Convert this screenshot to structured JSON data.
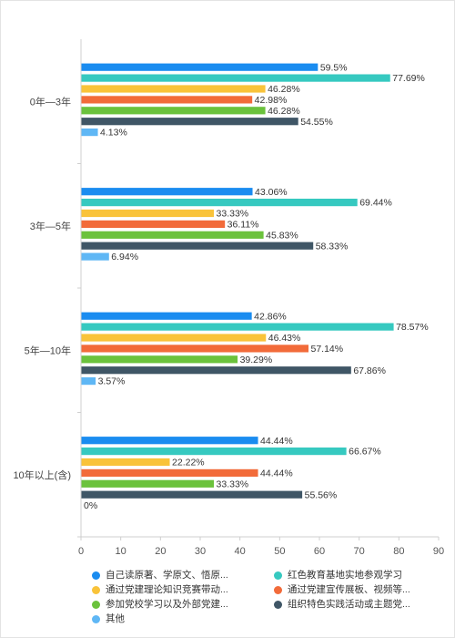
{
  "chart_data": {
    "type": "bar",
    "orientation": "horizontal",
    "categories": [
      "0年—3年",
      "3年—5年",
      "5年—10年",
      "10年以上(含)"
    ],
    "series": [
      {
        "name": "自己读原著、学原文、悟原...",
        "color": "#1a8cf0",
        "values": [
          59.5,
          43.06,
          42.86,
          44.44
        ],
        "labels": [
          "59.5%",
          "43.06%",
          "42.86%",
          "44.44%"
        ]
      },
      {
        "name": "红色教育基地实地参观学习",
        "color": "#36c9c0",
        "values": [
          77.69,
          69.44,
          78.57,
          66.67
        ],
        "labels": [
          "77.69%",
          "69.44%",
          "78.57%",
          "66.67%"
        ]
      },
      {
        "name": "通过党建理论知识竞赛带动...",
        "color": "#f9c33a",
        "values": [
          46.28,
          33.33,
          46.43,
          22.22
        ],
        "labels": [
          "46.28%",
          "33.33%",
          "46.43%",
          "22.22%"
        ]
      },
      {
        "name": "通过党建宣传展板、视频等...",
        "color": "#f26b3a",
        "values": [
          42.98,
          36.11,
          57.14,
          44.44
        ],
        "labels": [
          "42.98%",
          "36.11%",
          "57.14%",
          "44.44%"
        ]
      },
      {
        "name": "参加党校学习以及外部党建...",
        "color": "#6bc23c",
        "values": [
          46.28,
          45.83,
          39.29,
          33.33
        ],
        "labels": [
          "46.28%",
          "45.83%",
          "39.29%",
          "33.33%"
        ]
      },
      {
        "name": "组织特色实践活动或主题党...",
        "color": "#3f5666",
        "values": [
          54.55,
          58.33,
          67.86,
          55.56
        ],
        "labels": [
          "54.55%",
          "58.33%",
          "67.86%",
          "55.56%"
        ]
      },
      {
        "name": "其他",
        "color": "#5fb7f5",
        "values": [
          4.13,
          6.94,
          3.57,
          0
        ],
        "labels": [
          "4.13%",
          "6.94%",
          "3.57%",
          "0%"
        ]
      }
    ],
    "xlim": [
      0,
      90
    ],
    "xticks": [
      "0",
      "10",
      "20",
      "30",
      "40",
      "50",
      "60",
      "70",
      "80",
      "90"
    ],
    "grid": false,
    "legend_position": "bottom"
  }
}
